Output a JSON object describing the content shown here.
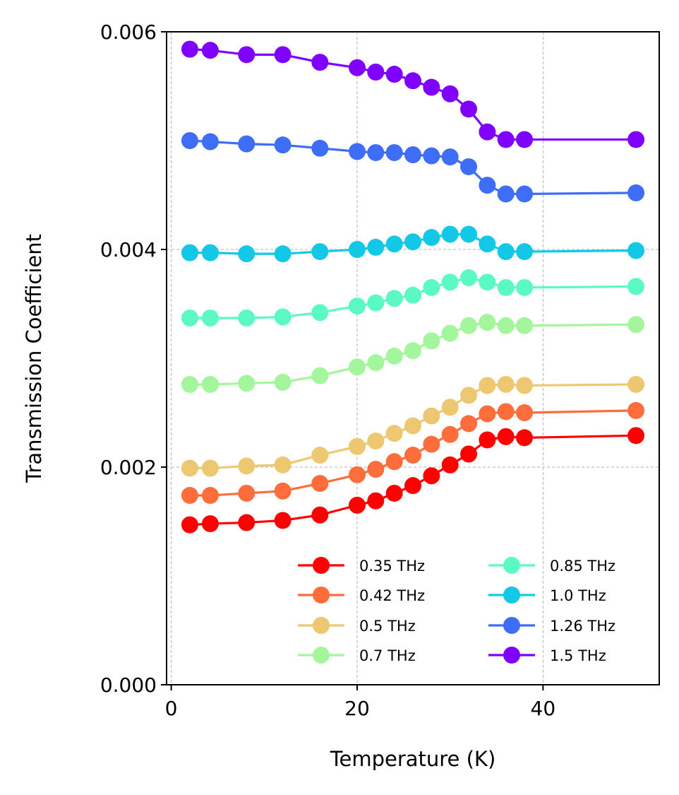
{
  "chart_data": {
    "type": "line",
    "title": "",
    "xlabel": "Temperature (K)",
    "ylabel": "Transmission Coefficient",
    "xlim": [
      -0.5,
      52.5
    ],
    "ylim": [
      0,
      0.006
    ],
    "xticks": [
      0,
      20,
      40
    ],
    "xtick_labels": [
      "0",
      "20",
      "40"
    ],
    "yticks": [
      0,
      0.002,
      0.004,
      0.006
    ],
    "ytick_labels": [
      "0.000",
      "0.002",
      "0.004",
      "0.006"
    ],
    "grid": true,
    "legend_position": "bottom-right",
    "legend_columns": 2,
    "x": [
      2,
      4.2,
      8.1,
      12,
      16,
      20,
      22,
      24,
      26,
      28,
      30,
      32,
      34,
      36,
      38,
      50
    ],
    "series": [
      {
        "name": "0.35 THz",
        "color": "#ff0000",
        "values": [
          0.00147,
          0.00148,
          0.00149,
          0.00151,
          0.00156,
          0.00165,
          0.00169,
          0.00176,
          0.00183,
          0.00192,
          0.00202,
          0.00212,
          0.00225,
          0.00228,
          0.00227,
          0.00229
        ]
      },
      {
        "name": "0.42 THz",
        "color": "#ff6d3a",
        "values": [
          0.00174,
          0.00174,
          0.00176,
          0.00178,
          0.00185,
          0.00193,
          0.00198,
          0.00205,
          0.00211,
          0.00221,
          0.0023,
          0.0024,
          0.00249,
          0.00251,
          0.0025,
          0.00252
        ]
      },
      {
        "name": "0.5 THz",
        "color": "#edc870",
        "values": [
          0.00199,
          0.00199,
          0.00201,
          0.00202,
          0.00211,
          0.00219,
          0.00224,
          0.00231,
          0.00238,
          0.00247,
          0.00255,
          0.00266,
          0.00275,
          0.00276,
          0.00275,
          0.00276
        ]
      },
      {
        "name": "0.7 THz",
        "color": "#a3f69b",
        "values": [
          0.00276,
          0.00276,
          0.00277,
          0.00278,
          0.00284,
          0.00292,
          0.00296,
          0.00302,
          0.00307,
          0.00316,
          0.00323,
          0.0033,
          0.00333,
          0.0033,
          0.0033,
          0.00331
        ]
      },
      {
        "name": "0.85 THz",
        "color": "#5bfac4",
        "values": [
          0.00337,
          0.00337,
          0.00337,
          0.00338,
          0.00342,
          0.00348,
          0.00351,
          0.00355,
          0.00358,
          0.00365,
          0.0037,
          0.00374,
          0.0037,
          0.00365,
          0.00365,
          0.00366
        ]
      },
      {
        "name": "1.0 THz",
        "color": "#12c8e6",
        "values": [
          0.00397,
          0.00397,
          0.00396,
          0.00396,
          0.00398,
          0.004,
          0.00402,
          0.00405,
          0.00407,
          0.00411,
          0.00414,
          0.00414,
          0.00405,
          0.00398,
          0.00398,
          0.00399
        ]
      },
      {
        "name": "1.26 THz",
        "color": "#3e6ef7",
        "values": [
          0.005,
          0.00499,
          0.00497,
          0.00496,
          0.00493,
          0.0049,
          0.00489,
          0.00489,
          0.00487,
          0.00486,
          0.00485,
          0.00476,
          0.00459,
          0.00451,
          0.00451,
          0.00452
        ]
      },
      {
        "name": "1.5 THz",
        "color": "#8000ff",
        "values": [
          0.00584,
          0.00583,
          0.00579,
          0.00579,
          0.00572,
          0.00567,
          0.00563,
          0.00561,
          0.00555,
          0.00549,
          0.00543,
          0.00529,
          0.00508,
          0.00501,
          0.00501,
          0.00501
        ]
      }
    ]
  }
}
